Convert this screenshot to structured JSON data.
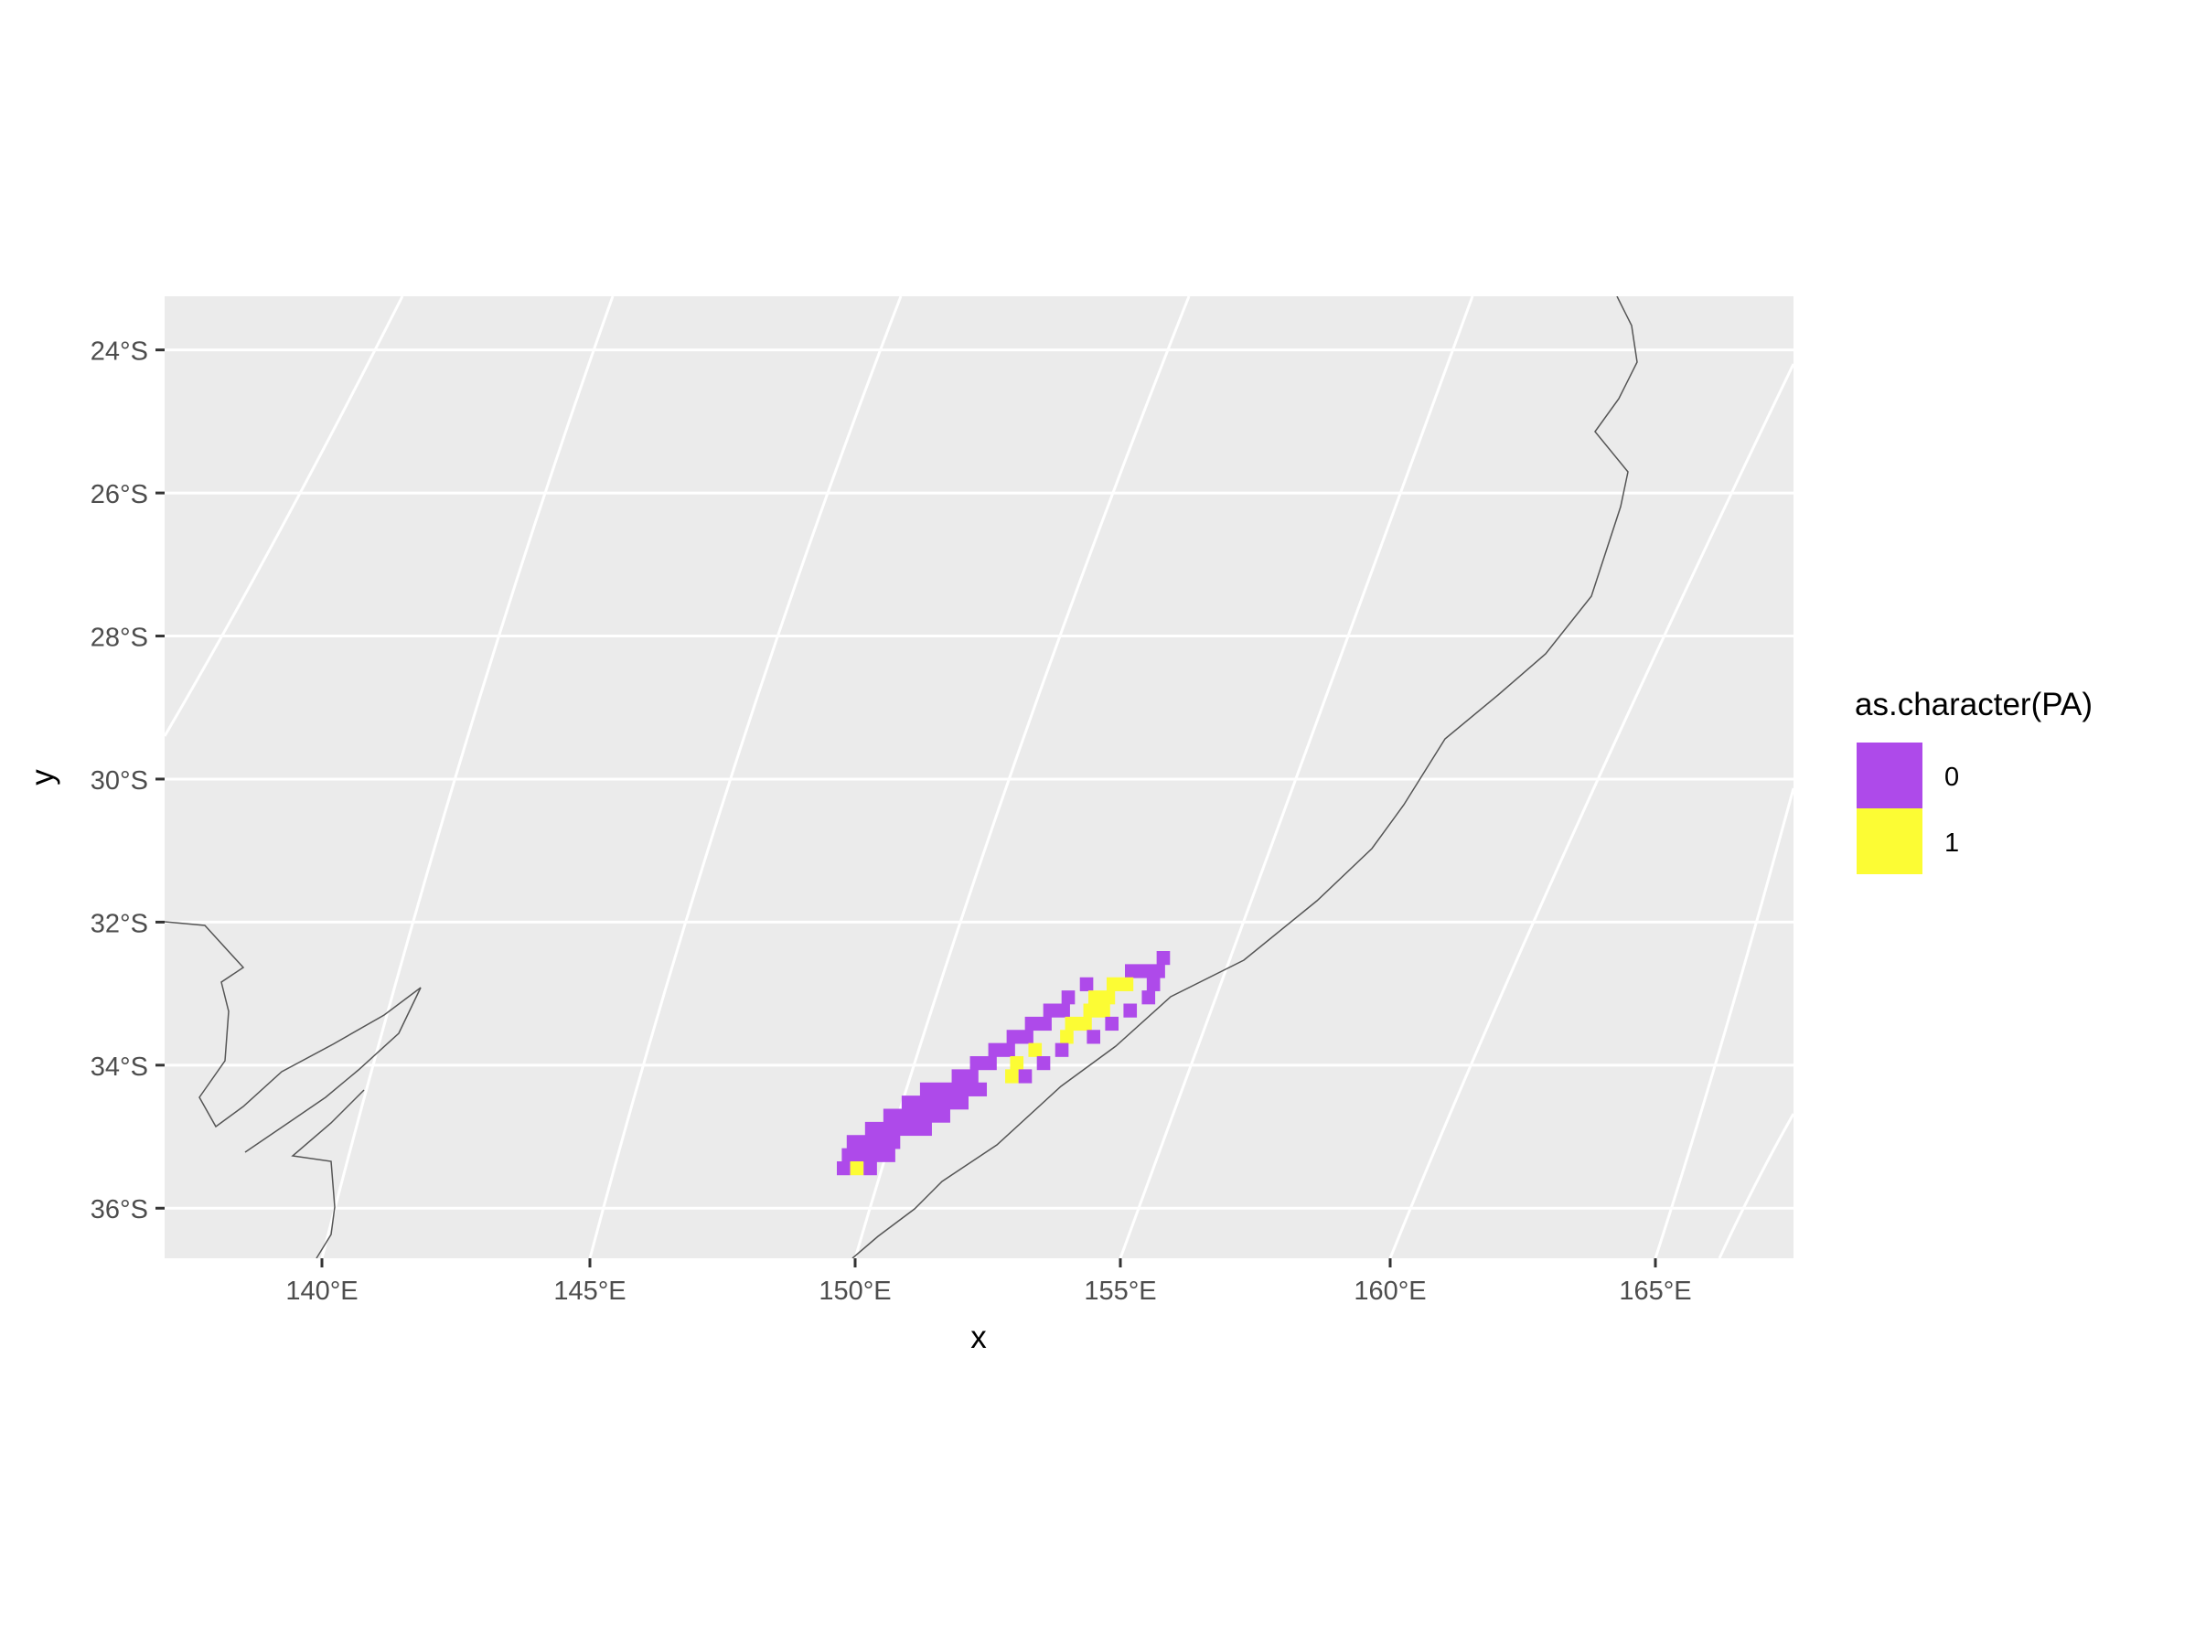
{
  "chart_data": {
    "type": "map",
    "xlabel": "x",
    "ylabel": "y",
    "x_ticks": [
      {
        "value": 140,
        "label": "140°E"
      },
      {
        "value": 145,
        "label": "145°E"
      },
      {
        "value": 150,
        "label": "150°E"
      },
      {
        "value": 155,
        "label": "155°E"
      },
      {
        "value": 160,
        "label": "160°E"
      },
      {
        "value": 165,
        "label": "165°E"
      }
    ],
    "y_ticks": [
      {
        "value": -24,
        "label": "24°S"
      },
      {
        "value": -26,
        "label": "26°S"
      },
      {
        "value": -28,
        "label": "28°S"
      },
      {
        "value": -30,
        "label": "30°S"
      },
      {
        "value": -32,
        "label": "32°S"
      },
      {
        "value": -34,
        "label": "34°S"
      },
      {
        "value": -36,
        "label": "36°S"
      }
    ],
    "xlim": [
      137.0,
      167.7
    ],
    "ylim": [
      -36.7,
      -23.25
    ],
    "grid": true,
    "panel_background": "#EBEBEB",
    "grid_color": "#FFFFFF",
    "legend": {
      "title": "as.character(PA)",
      "position": "right",
      "entries": [
        {
          "label": "0",
          "color": "#AE4AEA"
        },
        {
          "label": "1",
          "color": "#FCFC34"
        }
      ]
    },
    "raster": {
      "cell_size": 0.25,
      "rows": [
        {
          "y": -32.5,
          "cells": [
            [
              154.5,
              154.75,
              0
            ]
          ]
        },
        {
          "y": -32.75,
          "cells": [
            [
              154.0,
              154.75,
              0
            ]
          ]
        },
        {
          "y": -33.0,
          "cells": [
            [
              153.25,
              153.5,
              0
            ],
            [
              153.75,
              154.25,
              1
            ],
            [
              154.5,
              154.75,
              0
            ]
          ]
        },
        {
          "y": -33.25,
          "cells": [
            [
              153.0,
              153.25,
              0
            ],
            [
              153.5,
              154.0,
              1
            ],
            [
              154.5,
              154.75,
              0
            ]
          ]
        },
        {
          "y": -33.5,
          "cells": [
            [
              152.75,
              153.25,
              0
            ],
            [
              153.5,
              154.0,
              1
            ],
            [
              154.25,
              154.5,
              0
            ]
          ]
        },
        {
          "y": -33.75,
          "cells": [
            [
              152.5,
              153.0,
              0
            ],
            [
              153.25,
              153.75,
              1
            ],
            [
              154.0,
              154.25,
              0
            ]
          ]
        },
        {
          "y": -34.0,
          "cells": [
            [
              152.25,
              152.75,
              0
            ],
            [
              153.25,
              153.5,
              1
            ],
            [
              153.75,
              154.0,
              0
            ]
          ]
        },
        {
          "y": -34.25,
          "cells": [
            [
              152.0,
              152.5,
              0
            ],
            [
              152.75,
              153.0,
              1
            ],
            [
              153.25,
              153.5,
              0
            ]
          ]
        },
        {
          "y": -34.5,
          "cells": [
            [
              151.75,
              152.25,
              0
            ],
            [
              152.5,
              152.75,
              1
            ],
            [
              153.0,
              153.25,
              0
            ]
          ]
        },
        {
          "y": -34.75,
          "cells": [
            [
              151.5,
              152.0,
              0
            ],
            [
              152.5,
              152.75,
              1
            ],
            [
              152.75,
              153.0,
              0
            ]
          ]
        },
        {
          "y": -35.0,
          "cells": [
            [
              151.0,
              152.25,
              0
            ]
          ]
        },
        {
          "y": -35.25,
          "cells": [
            [
              150.75,
              152.0,
              0
            ]
          ]
        },
        {
          "y": -35.5,
          "cells": [
            [
              150.5,
              151.75,
              0
            ]
          ]
        },
        {
          "y": -35.75,
          "cells": [
            [
              150.25,
              151.5,
              0
            ]
          ]
        },
        {
          "y": -36.0,
          "cells": [
            [
              150.0,
              151.0,
              0
            ]
          ]
        },
        {
          "y": -36.25,
          "cells": [
            [
              150.0,
              151.0,
              0
            ]
          ]
        },
        {
          "y": -36.5,
          "cells": [
            [
              150.0,
              150.25,
              0
            ],
            [
              150.25,
              150.5,
              1
            ],
            [
              150.5,
              150.75,
              0
            ]
          ]
        }
      ]
    },
    "outline_color": "#555555"
  }
}
